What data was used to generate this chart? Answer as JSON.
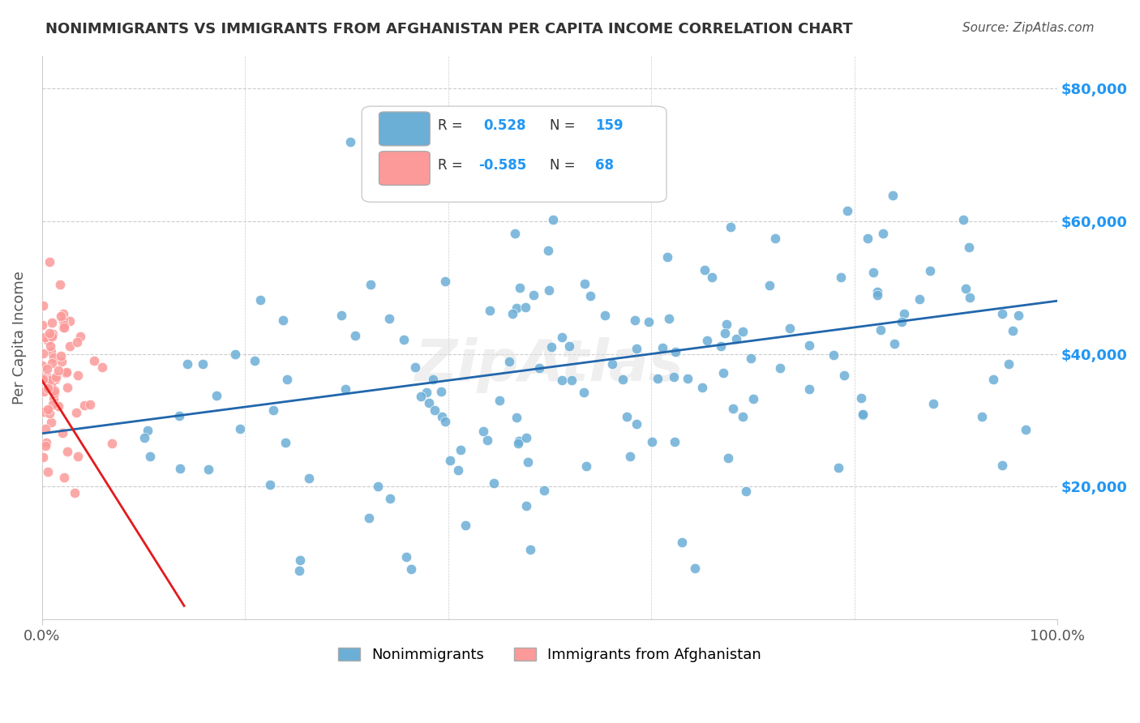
{
  "title": "NONIMMIGRANTS VS IMMIGRANTS FROM AFGHANISTAN PER CAPITA INCOME CORRELATION CHART",
  "source": "Source: ZipAtlas.com",
  "xlabel": "",
  "ylabel": "Per Capita Income",
  "xlim": [
    0,
    1.0
  ],
  "ylim": [
    0,
    85000
  ],
  "yticks": [
    20000,
    40000,
    60000,
    80000
  ],
  "ytick_labels": [
    "$20,000",
    "$40,000",
    "$60,000",
    "$80,000"
  ],
  "xtick_labels": [
    "0.0%",
    "100.0%"
  ],
  "legend_r_blue": "0.528",
  "legend_n_blue": "159",
  "legend_r_pink": "-0.585",
  "legend_n_pink": "68",
  "blue_color": "#6baed6",
  "pink_color": "#fb9a99",
  "blue_line_color": "#2166ac",
  "pink_line_color": "#e31a1c",
  "title_color": "#333333",
  "right_tick_color": "#2196F3",
  "watermark": "ZipAtlas",
  "background_color": "#ffffff",
  "blue_scatter_seed": 42,
  "pink_scatter_seed": 7
}
